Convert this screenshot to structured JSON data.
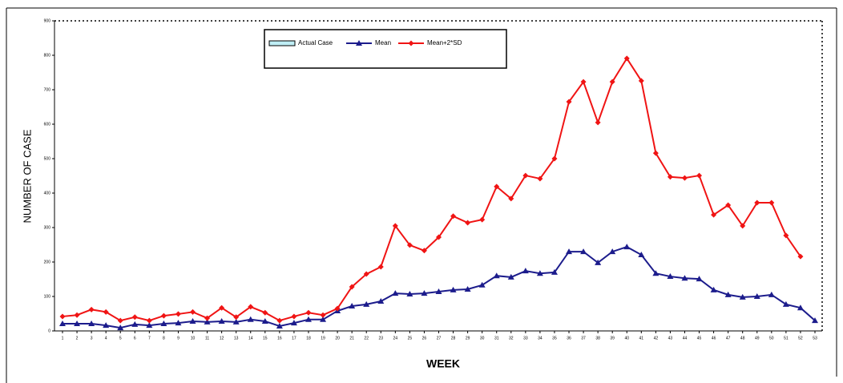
{
  "chart_data": {
    "type": "line",
    "x_label": "WEEK",
    "y_label": "NUMBER OF CASE",
    "categories": [
      1,
      2,
      3,
      4,
      5,
      6,
      7,
      8,
      9,
      10,
      11,
      12,
      13,
      14,
      15,
      16,
      17,
      18,
      19,
      20,
      21,
      22,
      23,
      24,
      25,
      26,
      27,
      28,
      29,
      30,
      31,
      32,
      33,
      34,
      35,
      36,
      37,
      38,
      39,
      40,
      41,
      42,
      43,
      44,
      45,
      46,
      47,
      48,
      49,
      50,
      51,
      52,
      53
    ],
    "series": [
      {
        "name": "Actual Case",
        "color": "#bfeef5",
        "values": [
          null,
          null,
          null,
          null,
          null,
          null,
          null,
          null,
          null,
          null,
          null,
          null,
          null,
          null,
          null,
          null,
          null,
          null,
          null,
          null,
          null,
          null,
          null,
          null,
          null,
          null,
          null,
          null,
          null,
          null,
          null,
          null,
          null,
          null,
          null,
          null,
          null,
          null,
          null,
          null,
          null,
          null,
          null,
          null,
          null,
          null,
          null,
          null,
          null,
          null,
          null,
          null,
          null
        ]
      },
      {
        "name": "Mean",
        "color": "#1c1c8c",
        "values": [
          21,
          21,
          21,
          16,
          9,
          19,
          16,
          21,
          23,
          28,
          26,
          28,
          26,
          33,
          28,
          14,
          23,
          33,
          33,
          58,
          72,
          77,
          86,
          109,
          107,
          109,
          114,
          119,
          121,
          133,
          160,
          156,
          174,
          167,
          170,
          230,
          230,
          198,
          230,
          244,
          221,
          167,
          158,
          153,
          151,
          119,
          105,
          98,
          100,
          105,
          77,
          67,
          30
        ]
      },
      {
        "name": "Mean+2*SD",
        "color": "#f01414",
        "values": [
          42,
          46,
          62,
          55,
          30,
          40,
          30,
          44,
          49,
          55,
          37,
          67,
          40,
          70,
          53,
          30,
          42,
          53,
          46,
          65,
          128,
          165,
          186,
          305,
          249,
          233,
          272,
          333,
          314,
          323,
          419,
          384,
          451,
          442,
          500,
          665,
          723,
          605,
          723,
          791,
          726,
          516,
          447,
          444,
          451,
          337,
          365,
          305,
          372,
          372,
          277,
          216,
          null
        ]
      }
    ],
    "ylim": [
      0,
      900
    ],
    "yticks": [
      0,
      100,
      200,
      300,
      400,
      500,
      600,
      700,
      800,
      900
    ]
  }
}
